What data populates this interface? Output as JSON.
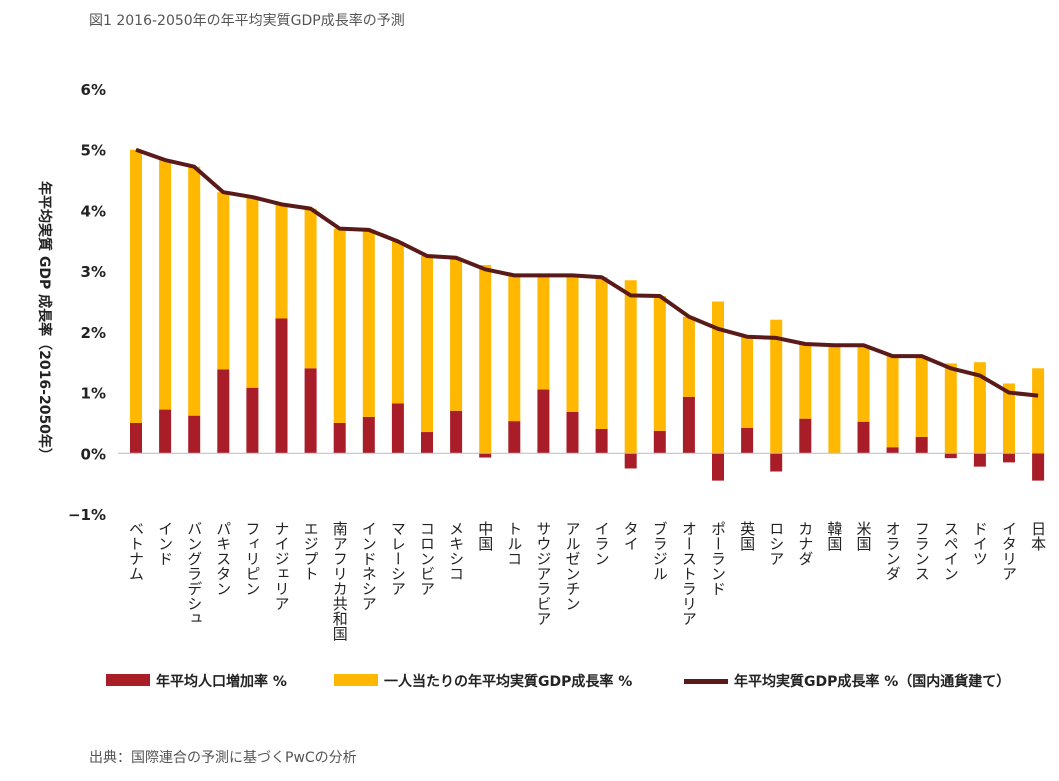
{
  "title": "図1 2016-2050年の年平均実質GDP成長率の予測",
  "source": "出典：国際連合の予測に基づくPwCの分析",
  "colors": {
    "population": "#A91D29",
    "per_capita": "#FFB700",
    "total": "#5A1A1A"
  },
  "chart_data": {
    "type": "bar",
    "stacked": true,
    "ylabel": "年平均実質 GDP 成長率（2016-2050年）",
    "ylim": [
      -1,
      6
    ],
    "yticks": [
      "6%",
      "5%",
      "4%",
      "3%",
      "2%",
      "1%",
      "0%",
      "−1%"
    ],
    "categories": [
      "ベトナム",
      "インド",
      "バングラデシュ",
      "パキスタン",
      "フィリピン",
      "ナイジェリア",
      "エジプト",
      "南アフリカ共和国",
      "インドネシア",
      "マレーシア",
      "コロンビア",
      "メキシコ",
      "中国",
      "トルコ",
      "サウジアラビア",
      "アルゼンチン",
      "イラン",
      "タイ",
      "ブラジル",
      "オーストラリア",
      "ポーランド",
      "英国",
      "ロシア",
      "カナダ",
      "韓国",
      "米国",
      "オランダ",
      "フランス",
      "スペイン",
      "ドイツ",
      "イタリア",
      "日本"
    ],
    "series": [
      {
        "name": "年平均人口増加率 %",
        "type": "bar",
        "values": [
          0.5,
          0.72,
          0.62,
          1.38,
          1.08,
          2.22,
          1.4,
          0.5,
          0.6,
          0.82,
          0.35,
          0.7,
          -0.07,
          0.53,
          1.05,
          0.68,
          0.4,
          -0.25,
          0.37,
          0.93,
          -0.45,
          0.42,
          -0.3,
          0.57,
          0.0,
          0.52,
          0.1,
          0.27,
          -0.08,
          -0.22,
          -0.15,
          -0.45
        ]
      },
      {
        "name": "一人当たりの年平均実質GDP成長率 %",
        "type": "bar",
        "values": [
          4.5,
          4.11,
          4.1,
          2.92,
          3.14,
          1.88,
          2.63,
          3.2,
          3.08,
          2.67,
          2.9,
          2.52,
          3.1,
          2.4,
          1.88,
          2.25,
          2.5,
          2.85,
          2.22,
          1.32,
          2.5,
          1.5,
          2.2,
          1.23,
          1.78,
          1.26,
          1.5,
          1.33,
          1.48,
          1.5,
          1.15,
          1.4
        ]
      },
      {
        "name": "年平均実質GDP成長率 %（国内通貨建て）",
        "type": "line",
        "values": [
          5.0,
          4.83,
          4.72,
          4.3,
          4.22,
          4.1,
          4.03,
          3.7,
          3.68,
          3.49,
          3.25,
          3.22,
          3.03,
          2.93,
          2.93,
          2.93,
          2.9,
          2.6,
          2.59,
          2.25,
          2.05,
          1.92,
          1.9,
          1.8,
          1.78,
          1.78,
          1.6,
          1.6,
          1.4,
          1.28,
          1.0,
          0.95
        ]
      }
    ],
    "legend_position": "bottom",
    "grid": false
  }
}
